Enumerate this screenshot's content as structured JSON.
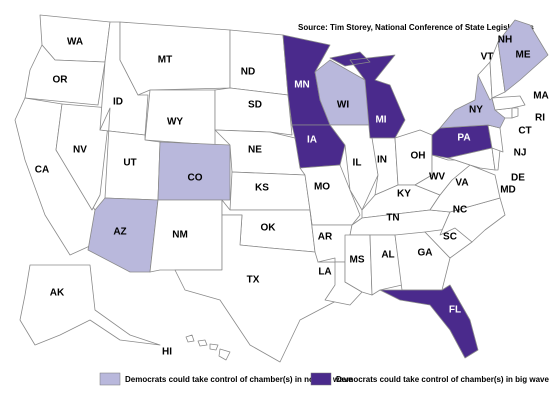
{
  "source": "Source: Tim Storey, National Conference of State Legislatures",
  "legend": [
    {
      "label": "Democrats could take control of chamber(s) in normal wave",
      "color": "#b9b8dc"
    },
    {
      "label": "Democrats could take control of chamber(s) in big wave",
      "color": "#4a2a8c"
    }
  ],
  "states": [
    {
      "label": "WA",
      "fill": "#ffffff"
    },
    {
      "label": "OR",
      "fill": "#ffffff"
    },
    {
      "label": "CA",
      "fill": "#ffffff"
    },
    {
      "label": "NV",
      "fill": "#ffffff"
    },
    {
      "label": "ID",
      "fill": "#ffffff"
    },
    {
      "label": "MT",
      "fill": "#ffffff"
    },
    {
      "label": "WY",
      "fill": "#ffffff"
    },
    {
      "label": "UT",
      "fill": "#ffffff"
    },
    {
      "label": "AZ",
      "fill": "#b9b8dc"
    },
    {
      "label": "CO",
      "fill": "#b9b8dc"
    },
    {
      "label": "NM",
      "fill": "#ffffff"
    },
    {
      "label": "ND",
      "fill": "#ffffff"
    },
    {
      "label": "SD",
      "fill": "#ffffff"
    },
    {
      "label": "NE",
      "fill": "#ffffff"
    },
    {
      "label": "KS",
      "fill": "#ffffff"
    },
    {
      "label": "OK",
      "fill": "#ffffff"
    },
    {
      "label": "TX",
      "fill": "#ffffff"
    },
    {
      "label": "MN",
      "fill": "#4a2a8c"
    },
    {
      "label": "IA",
      "fill": "#4a2a8c"
    },
    {
      "label": "MO",
      "fill": "#ffffff"
    },
    {
      "label": "AR",
      "fill": "#ffffff"
    },
    {
      "label": "LA",
      "fill": "#ffffff"
    },
    {
      "label": "WI",
      "fill": "#b9b8dc"
    },
    {
      "label": "IL",
      "fill": "#ffffff"
    },
    {
      "label": "MI",
      "fill": "#4a2a8c"
    },
    {
      "label": "IN",
      "fill": "#ffffff"
    },
    {
      "label": "OH",
      "fill": "#ffffff"
    },
    {
      "label": "KY",
      "fill": "#ffffff"
    },
    {
      "label": "TN",
      "fill": "#ffffff"
    },
    {
      "label": "MS",
      "fill": "#ffffff"
    },
    {
      "label": "AL",
      "fill": "#ffffff"
    },
    {
      "label": "GA",
      "fill": "#ffffff"
    },
    {
      "label": "FL",
      "fill": "#4a2a8c"
    },
    {
      "label": "SC",
      "fill": "#ffffff"
    },
    {
      "label": "NC",
      "fill": "#ffffff"
    },
    {
      "label": "VA",
      "fill": "#ffffff"
    },
    {
      "label": "WV",
      "fill": "#ffffff"
    },
    {
      "label": "PA",
      "fill": "#4a2a8c"
    },
    {
      "label": "MD",
      "fill": "#ffffff"
    },
    {
      "label": "DE",
      "fill": "#ffffff"
    },
    {
      "label": "NJ",
      "fill": "#ffffff"
    },
    {
      "label": "NY",
      "fill": "#b9b8dc"
    },
    {
      "label": "CT",
      "fill": "#ffffff"
    },
    {
      "label": "RI",
      "fill": "#ffffff"
    },
    {
      "label": "MA",
      "fill": "#ffffff"
    },
    {
      "label": "VT",
      "fill": "#ffffff"
    },
    {
      "label": "NH",
      "fill": "#ffffff"
    },
    {
      "label": "ME",
      "fill": "#b9b8dc"
    },
    {
      "label": "AK",
      "fill": "#ffffff"
    },
    {
      "label": "HI",
      "fill": "#ffffff"
    }
  ]
}
